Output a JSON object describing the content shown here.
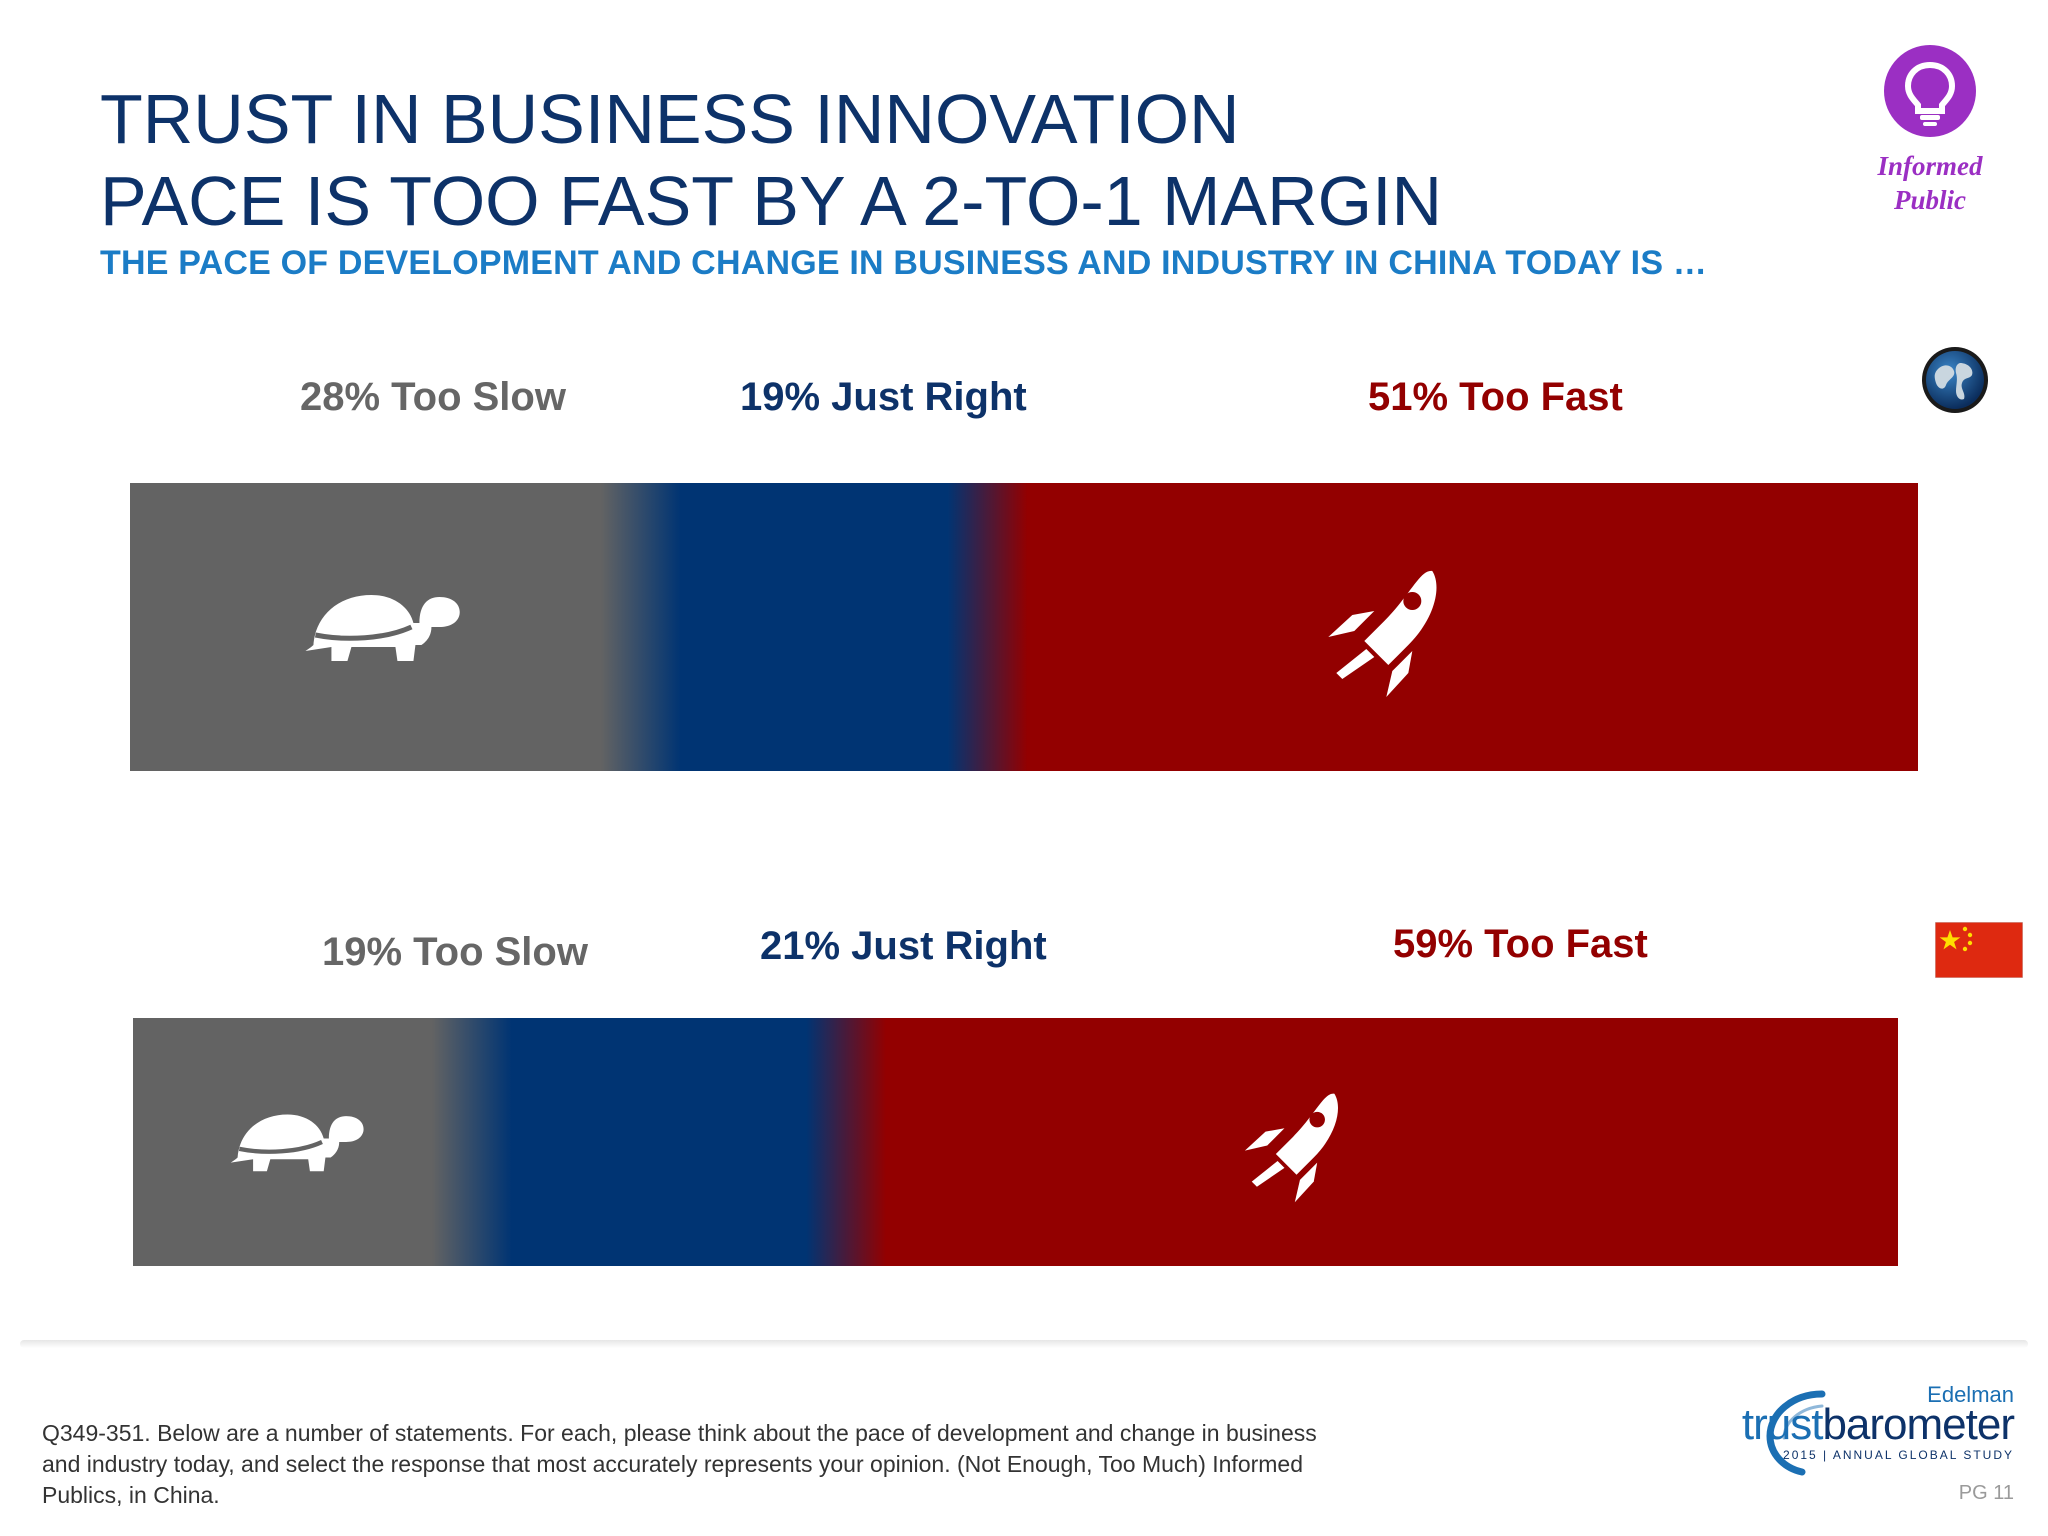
{
  "title": {
    "line1": "TRUST IN BUSINESS INNOVATION",
    "line2": "PACE IS TOO FAST BY A 2-TO-1 MARGIN"
  },
  "subtitle": "THE PACE OF DEVELOPMENT AND CHANGE IN BUSINESS AND INDUSTRY IN CHINA TODAY IS …",
  "badge": {
    "line1": "Informed",
    "line2": "Public",
    "icon": "lightbulb-icon",
    "color": "#9b2fc3"
  },
  "chart_data": {
    "type": "bar",
    "stacked": true,
    "orientation": "horizontal",
    "unit": "%",
    "categories": [
      "Too Slow",
      "Just Right",
      "Too Fast"
    ],
    "colors": {
      "Too Slow": "#636363",
      "Just Right": "#003473",
      "Too Fast": "#930000"
    },
    "series": [
      {
        "group_icon": "globe-icon",
        "values": [
          28,
          19,
          51
        ],
        "labels": [
          "28% Too Slow",
          "19% Just Right",
          "51% Too Fast"
        ]
      },
      {
        "group_icon": "china-flag-icon",
        "values": [
          19,
          21,
          59
        ],
        "labels": [
          "19% Too Slow",
          "21% Just Right",
          "59% Too Fast"
        ]
      }
    ],
    "grid": false,
    "legend": "none"
  },
  "footnote": "Q349-351. Below are a number of statements. For each, please think about the pace of development and change in business and industry today, and select the response that most accurately represents your opinion. (Not Enough, Too Much) Informed Publics, in China.",
  "logo": {
    "company": "Edelman",
    "product_light": "trust",
    "product_dark": "barometer",
    "tagline": "2015 | ANNUAL GLOBAL STUDY"
  },
  "page_number": "PG 11"
}
